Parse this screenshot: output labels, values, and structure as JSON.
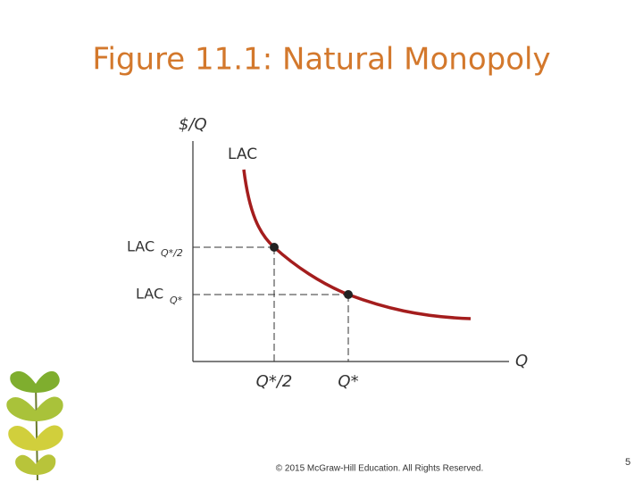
{
  "header": {
    "title": "Figure 11.1: Natural Monopoly"
  },
  "diagram": {
    "y_axis_label": "$/Q",
    "x_axis_label": "Q",
    "curve_label": "LAC",
    "y_labels": [
      {
        "main": "LAC",
        "sub": "Q*/2"
      },
      {
        "main": "LAC",
        "sub": "Q*"
      }
    ],
    "x_labels": [
      "Q*/2",
      "Q*"
    ]
  },
  "footer": {
    "copyright": "© 2015 McGraw-Hill Education. All Rights Reserved.",
    "page_number": "5"
  }
}
